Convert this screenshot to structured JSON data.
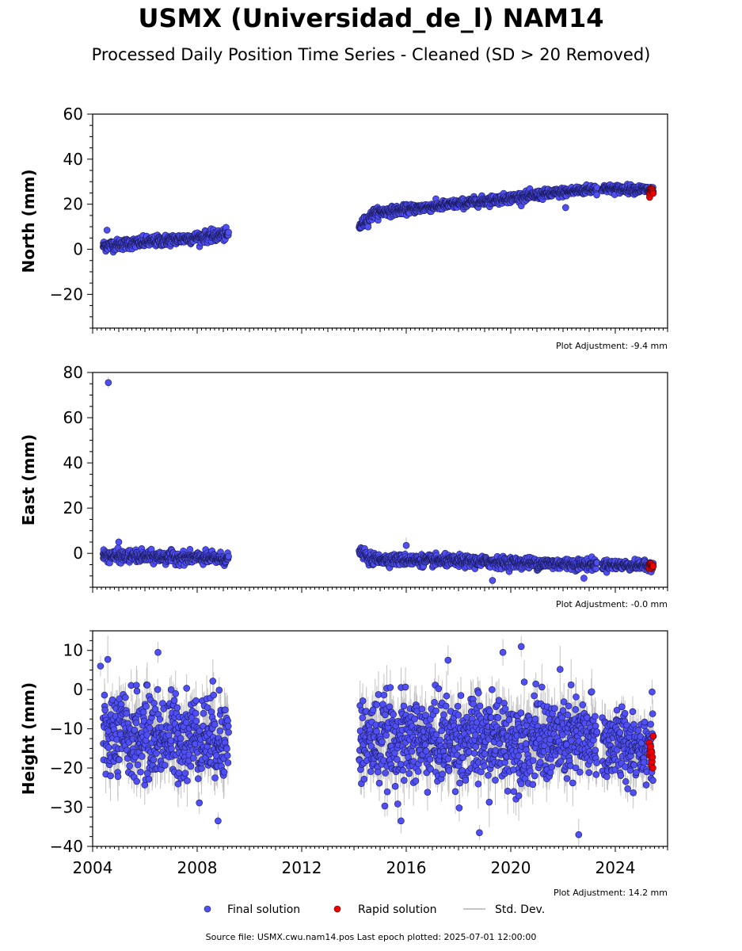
{
  "title": "USMX (Universidad_de_l) NAM14",
  "subtitle": "Processed Daily Position Time Series - Cleaned (SD > 20 Removed)",
  "source_text": "Source file: USMX.cwu.nam14.pos  Last epoch plotted: 2025-07-01 12:00:00",
  "colors": {
    "final": "#4f4ff5",
    "rapid": "#ee0000",
    "stddev": "#b0b0b0",
    "edge": "#1a1a5a"
  },
  "legend": {
    "final": "Final solution",
    "rapid": "Rapid solution",
    "stddev": "Std. Dev."
  },
  "chart_data": [
    {
      "type": "scatter",
      "ylabel": "North (mm)",
      "ylim": [
        -35,
        60
      ],
      "xlim": [
        2004,
        2026
      ],
      "yticks": [
        -20,
        0,
        20,
        40,
        60
      ],
      "adjustment": "Plot Adjustment: -9.4 mm",
      "segments": [
        {
          "x": [
            2004.4,
            2009.2
          ],
          "y": [
            1.5,
            6.5
          ],
          "noise": 1.2
        },
        {
          "x": [
            2014.2,
            2014.7
          ],
          "y": [
            10,
            15
          ],
          "noise": 1.2
        },
        {
          "x": [
            2014.7,
            2023.3
          ],
          "y": [
            16,
            27
          ],
          "noise": 1.0
        },
        {
          "x": [
            2023.5,
            2025.45
          ],
          "y": [
            27,
            26.5
          ],
          "noise": 0.9
        }
      ],
      "outliers": [
        [
          2004.55,
          8.5
        ],
        [
          2022.1,
          18.5
        ]
      ],
      "rapid": {
        "x": [
          2025.3,
          2025.45
        ],
        "y": 26,
        "noise": 1.0
      }
    },
    {
      "type": "scatter",
      "ylabel": "East (mm)",
      "ylim": [
        -15,
        80
      ],
      "xlim": [
        2004,
        2026
      ],
      "yticks": [
        0,
        20,
        40,
        60,
        80
      ],
      "adjustment": "Plot Adjustment: -0.0 mm",
      "segments": [
        {
          "x": [
            2004.4,
            2009.2
          ],
          "y": [
            -1,
            -2.5
          ],
          "noise": 1.3
        },
        {
          "x": [
            2014.2,
            2014.5
          ],
          "y": [
            1,
            -1
          ],
          "noise": 1.0
        },
        {
          "x": [
            2014.5,
            2023.3
          ],
          "y": [
            -2.5,
            -5
          ],
          "noise": 1.2
        },
        {
          "x": [
            2023.5,
            2025.45
          ],
          "y": [
            -5,
            -5.5
          ],
          "noise": 1.0
        }
      ],
      "outliers": [
        [
          2004.6,
          75.5
        ],
        [
          2005.0,
          5
        ],
        [
          2016.0,
          3.5
        ],
        [
          2019.3,
          -12
        ],
        [
          2022.8,
          -11
        ]
      ],
      "rapid": {
        "x": [
          2025.3,
          2025.45
        ],
        "y": -5.5,
        "noise": 1.5
      }
    },
    {
      "type": "scatter",
      "ylabel": "Height (mm)",
      "ylim": [
        -40,
        15
      ],
      "xlim": [
        2004,
        2026
      ],
      "yticks": [
        -40,
        -30,
        -20,
        -10,
        0,
        10
      ],
      "xticks": [
        2004,
        2008,
        2012,
        2016,
        2020,
        2024
      ],
      "adjustment": "Plot Adjustment: 14.2 mm",
      "segments": [
        {
          "x": [
            2004.4,
            2009.2
          ],
          "y": [
            -12,
            -12
          ],
          "noise": 5.5
        },
        {
          "x": [
            2014.2,
            2023.3
          ],
          "y": [
            -13,
            -13
          ],
          "noise": 5.5
        },
        {
          "x": [
            2023.5,
            2025.45
          ],
          "y": [
            -14,
            -14
          ],
          "noise": 4.5
        }
      ],
      "outliers": [
        [
          2004.3,
          6
        ],
        [
          2006.5,
          9.5
        ],
        [
          2019.7,
          9.5
        ],
        [
          2020.4,
          11
        ],
        [
          2008.8,
          -33.5
        ],
        [
          2018.8,
          -36.5
        ],
        [
          2022.6,
          -37
        ],
        [
          2015.8,
          -33.5
        ],
        [
          2017.6,
          7.5
        ]
      ],
      "rapid": {
        "x": [
          2025.3,
          2025.45
        ],
        "y": -17,
        "noise": 5.0
      }
    }
  ]
}
